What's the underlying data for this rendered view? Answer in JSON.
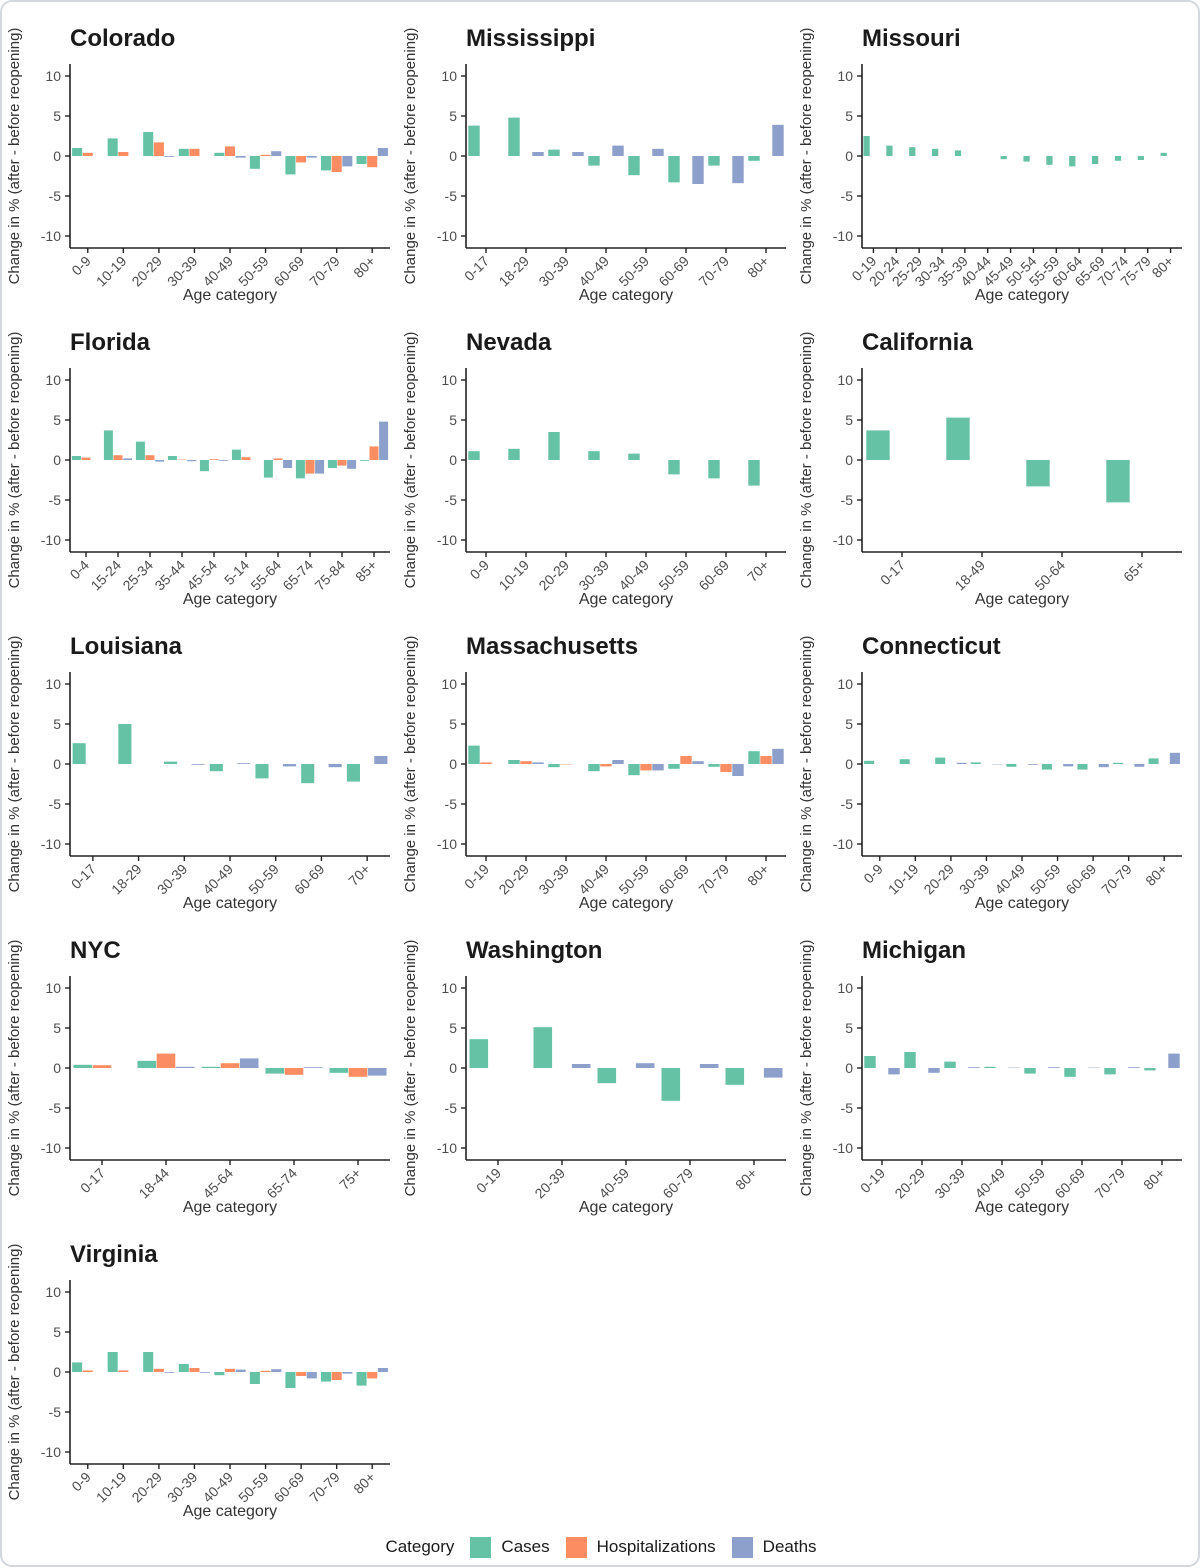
{
  "figure": {
    "ylabel": "Change in % (after - before reopening)",
    "xlabel": "Age category",
    "yticks": [
      10,
      5,
      0,
      -5,
      -10
    ],
    "ylim": [
      -11.5,
      11.5
    ],
    "grid": "off",
    "legend_position": "bottom"
  },
  "legend": {
    "title": "Category",
    "items": [
      {
        "label": "Cases",
        "color": "#66c2a5"
      },
      {
        "label": "Hospitalizations",
        "color": "#fc8d62"
      },
      {
        "label": "Deaths",
        "color": "#8da0cb"
      }
    ]
  },
  "chart_data": [
    {
      "type": "bar",
      "title": "Colorado",
      "categories": [
        "0-9",
        "10-19",
        "20-29",
        "30-39",
        "40-49",
        "50-59",
        "60-69",
        "70-79",
        "80+"
      ],
      "series": [
        {
          "name": "Cases",
          "values": [
            1.0,
            2.2,
            3.0,
            0.9,
            0.4,
            -1.6,
            -2.3,
            -1.8,
            -1.0
          ]
        },
        {
          "name": "Hospitalizations",
          "values": [
            0.4,
            0.5,
            1.7,
            0.9,
            1.2,
            0.15,
            -0.8,
            -2.0,
            -1.4
          ]
        },
        {
          "name": "Deaths",
          "values": [
            0,
            0,
            -0.1,
            0,
            -0.2,
            0.6,
            -0.2,
            -1.3,
            1.0
          ]
        }
      ]
    },
    {
      "type": "bar",
      "title": "Mississippi",
      "categories": [
        "0-17",
        "18-29",
        "30-39",
        "40-49",
        "50-59",
        "60-69",
        "70-79",
        "80+"
      ],
      "series": [
        {
          "name": "Cases",
          "values": [
            3.8,
            4.8,
            0.8,
            -1.2,
            -2.4,
            -3.3,
            -1.2,
            -0.6
          ]
        },
        {
          "name": "Deaths",
          "values": [
            0,
            0.5,
            0.5,
            1.3,
            0.9,
            -3.5,
            -3.4,
            3.9
          ]
        }
      ]
    },
    {
      "type": "bar",
      "title": "Missouri",
      "categories": [
        "0-19",
        "20-24",
        "25-29",
        "30-34",
        "35-39",
        "40-44",
        "45-49",
        "50-54",
        "55-59",
        "60-64",
        "65-69",
        "70-74",
        "75-79",
        "80+"
      ],
      "series": [
        {
          "name": "Cases",
          "values": [
            2.5,
            1.3,
            1.1,
            0.9,
            0.7,
            0,
            -0.4,
            -0.7,
            -1.1,
            -1.3,
            -1.0,
            -0.6,
            -0.5,
            0.4
          ]
        }
      ]
    },
    {
      "type": "bar",
      "title": "Florida",
      "categories": [
        "0-4",
        "15-24",
        "25-34",
        "35-44",
        "45-54",
        "5-14",
        "55-64",
        "65-74",
        "75-84",
        "85+"
      ],
      "series": [
        {
          "name": "Cases",
          "values": [
            0.5,
            3.7,
            2.3,
            0.5,
            -1.4,
            1.3,
            -2.2,
            -2.3,
            -1.0,
            -0.1
          ]
        },
        {
          "name": "Hospitalizations",
          "values": [
            0.3,
            0.6,
            0.6,
            0.05,
            0.1,
            0.35,
            0.2,
            -1.7,
            -0.7,
            1.7
          ]
        },
        {
          "name": "Deaths",
          "values": [
            0,
            0.2,
            -0.2,
            -0.15,
            -0.1,
            0,
            -1.0,
            -1.7,
            -1.1,
            4.8
          ]
        }
      ]
    },
    {
      "type": "bar",
      "title": "Nevada",
      "categories": [
        "0-9",
        "10-19",
        "20-29",
        "30-39",
        "40-49",
        "50-59",
        "60-69",
        "70+"
      ],
      "series": [
        {
          "name": "Cases",
          "values": [
            1.1,
            1.4,
            3.5,
            1.1,
            0.8,
            -1.8,
            -2.3,
            -3.2
          ]
        }
      ]
    },
    {
      "type": "bar",
      "title": "California",
      "categories": [
        "0-17",
        "18-49",
        "50-64",
        "65+"
      ],
      "series": [
        {
          "name": "Cases",
          "values": [
            3.7,
            5.3,
            -3.3,
            -5.3
          ]
        }
      ]
    },
    {
      "type": "bar",
      "title": "Louisiana",
      "categories": [
        "0-17",
        "18-29",
        "30-39",
        "40-49",
        "50-59",
        "60-69",
        "70+"
      ],
      "series": [
        {
          "name": "Cases",
          "values": [
            2.6,
            5.0,
            0.3,
            -0.9,
            -1.8,
            -2.4,
            -2.2
          ]
        },
        {
          "name": "Deaths",
          "values": [
            0,
            0,
            -0.1,
            0.1,
            -0.3,
            -0.4,
            1.0
          ]
        }
      ]
    },
    {
      "type": "bar",
      "title": "Massachusetts",
      "categories": [
        "0-19",
        "20-29",
        "30-39",
        "40-49",
        "50-59",
        "60-69",
        "70-79",
        "80+"
      ],
      "series": [
        {
          "name": "Cases",
          "values": [
            2.3,
            0.5,
            -0.4,
            -0.9,
            -1.4,
            -0.6,
            -0.35,
            1.6
          ]
        },
        {
          "name": "Hospitalizations",
          "values": [
            0.2,
            0.35,
            -0.05,
            -0.3,
            -0.8,
            1.0,
            -1.0,
            1.0
          ]
        },
        {
          "name": "Deaths",
          "values": [
            0,
            0.2,
            0,
            0.5,
            -0.8,
            0.35,
            -1.5,
            1.9
          ]
        }
      ]
    },
    {
      "type": "bar",
      "title": "Connecticut",
      "categories": [
        "0-9",
        "10-19",
        "20-29",
        "30-39",
        "40-49",
        "50-59",
        "60-69",
        "70-79",
        "80+"
      ],
      "series": [
        {
          "name": "Cases",
          "values": [
            0.4,
            0.6,
            0.8,
            0.2,
            -0.35,
            -0.7,
            -0.7,
            0.15,
            0.7
          ]
        },
        {
          "name": "Deaths",
          "values": [
            0,
            0,
            0.15,
            -0.05,
            -0.1,
            -0.3,
            -0.4,
            -0.35,
            1.4
          ]
        }
      ]
    },
    {
      "type": "bar",
      "title": "NYC",
      "categories": [
        "0-17",
        "18-44",
        "45-64",
        "65-74",
        "75+"
      ],
      "series": [
        {
          "name": "Cases",
          "values": [
            0.4,
            0.9,
            0.15,
            -0.7,
            -0.6
          ]
        },
        {
          "name": "Hospitalizations",
          "values": [
            0.35,
            1.8,
            0.6,
            -0.85,
            -1.1
          ]
        },
        {
          "name": "Deaths",
          "values": [
            0,
            0.15,
            1.2,
            0.1,
            -0.95
          ]
        }
      ]
    },
    {
      "type": "bar",
      "title": "Washington",
      "categories": [
        "0-19",
        "20-39",
        "40-59",
        "60-79",
        "80+"
      ],
      "series": [
        {
          "name": "Cases",
          "values": [
            3.6,
            5.1,
            -1.9,
            -4.1,
            -2.1
          ]
        },
        {
          "name": "Deaths",
          "values": [
            0,
            0.5,
            0.6,
            0.5,
            -1.2
          ]
        }
      ]
    },
    {
      "type": "bar",
      "title": "Michigan",
      "categories": [
        "0-19",
        "20-29",
        "30-39",
        "40-49",
        "50-59",
        "60-69",
        "70-79",
        "80+"
      ],
      "series": [
        {
          "name": "Cases",
          "values": [
            1.5,
            2.0,
            0.8,
            0.15,
            -0.7,
            -1.1,
            -0.8,
            -0.3
          ]
        },
        {
          "name": "Deaths",
          "values": [
            -0.8,
            -0.6,
            0.1,
            0.05,
            0.1,
            0.05,
            0.1,
            1.8
          ]
        }
      ]
    },
    {
      "type": "bar",
      "title": "Virginia",
      "categories": [
        "0-9",
        "10-19",
        "20-29",
        "30-39",
        "40-49",
        "50-59",
        "60-69",
        "70-79",
        "80+"
      ],
      "series": [
        {
          "name": "Cases",
          "values": [
            1.2,
            2.5,
            2.5,
            1.0,
            -0.4,
            -1.5,
            -2.0,
            -1.2,
            -1.7
          ]
        },
        {
          "name": "Hospitalizations",
          "values": [
            0.2,
            0.2,
            0.4,
            0.5,
            0.4,
            0.15,
            -0.5,
            -1.0,
            -0.8
          ]
        },
        {
          "name": "Deaths",
          "values": [
            0,
            0,
            -0.1,
            -0.1,
            0.3,
            0.35,
            -0.8,
            -0.2,
            0.5
          ]
        }
      ]
    }
  ]
}
